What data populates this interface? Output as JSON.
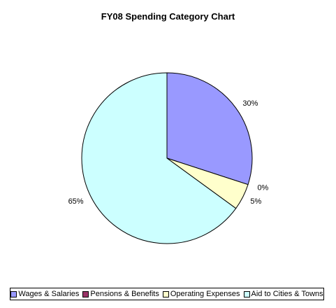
{
  "chart_data": {
    "type": "pie",
    "title": "FY08 Spending Category Chart",
    "slices": [
      {
        "name": "Wages & Salaries",
        "percent": 30,
        "label": "30%",
        "color": "#9999ff"
      },
      {
        "name": "Pensions & Benefits",
        "percent": 0,
        "label": "0%",
        "color": "#993366"
      },
      {
        "name": "Operating Expenses",
        "percent": 5,
        "label": "5%",
        "color": "#ffffcc"
      },
      {
        "name": "Aid to Cities & Towns",
        "percent": 65,
        "label": "65%",
        "color": "#ccffff"
      }
    ],
    "legend_position": "bottom"
  }
}
